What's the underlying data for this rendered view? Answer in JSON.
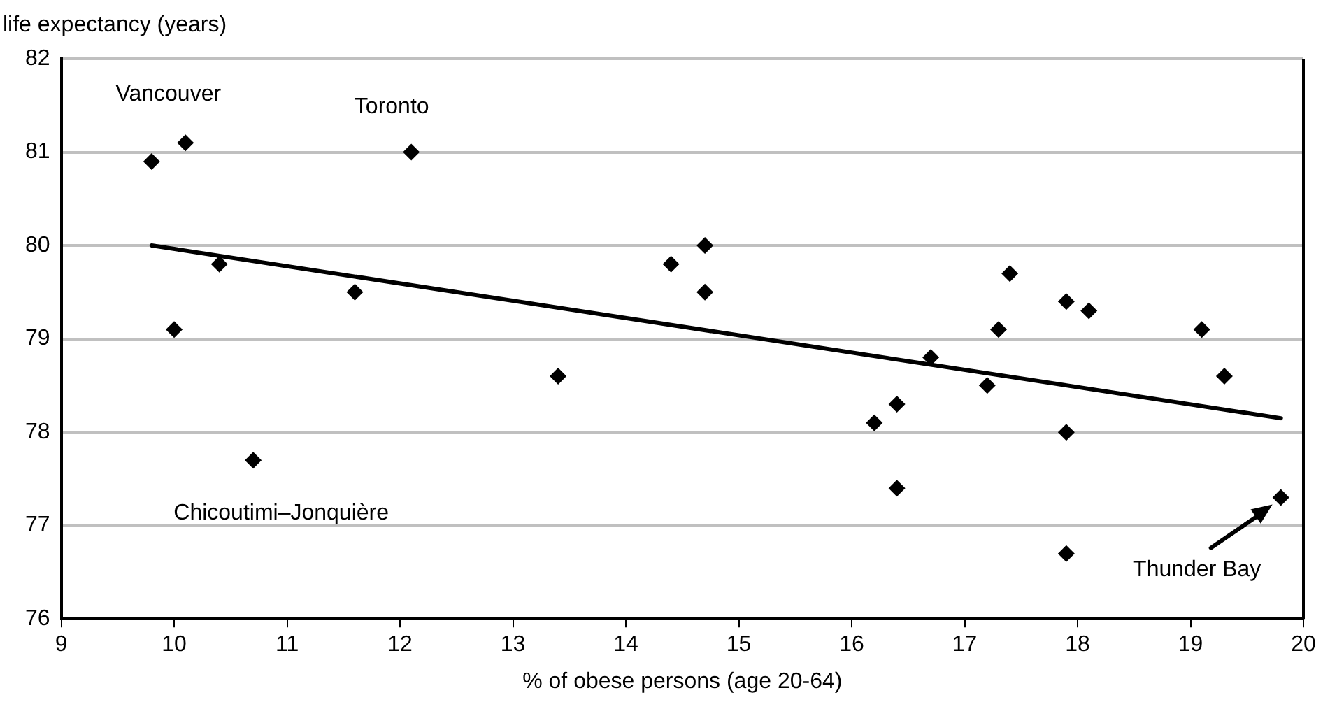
{
  "chart_data": {
    "type": "scatter",
    "xlabel": "% of obese persons (age 20-64)",
    "ylabel": "life expectancy (years)",
    "xlim": [
      9,
      20
    ],
    "xticks": [
      9,
      10,
      11,
      12,
      13,
      14,
      15,
      16,
      17,
      18,
      19,
      20
    ],
    "ylim": [
      76,
      82
    ],
    "yticks": [
      76,
      77,
      78,
      79,
      80,
      81,
      82
    ],
    "grid": "y",
    "series": [
      {
        "marker": "diamond",
        "color": "#000000",
        "x": [
          9.8,
          10.1,
          10.0,
          10.4,
          10.7,
          11.6,
          12.1,
          13.4,
          14.4,
          14.7,
          14.7,
          16.2,
          16.4,
          16.4,
          16.7,
          17.2,
          17.3,
          17.4,
          17.9,
          18.1,
          17.9,
          17.9,
          19.1,
          19.3,
          19.8
        ],
        "values": [
          80.9,
          81.1,
          79.1,
          79.8,
          77.7,
          79.5,
          81.0,
          78.6,
          79.8,
          80.0,
          79.5,
          78.1,
          78.3,
          77.4,
          78.8,
          78.5,
          79.1,
          79.7,
          79.4,
          79.3,
          78.0,
          76.7,
          79.1,
          78.6,
          77.3
        ]
      },
      {
        "type": "line",
        "color": "#000000",
        "x": [
          9.8,
          19.8
        ],
        "values": [
          80.0,
          78.15
        ]
      }
    ],
    "annotations": [
      {
        "text": "Vancouver",
        "x": 9.8,
        "y": 80.9
      },
      {
        "text": "Toronto",
        "x": 12.1,
        "y": 81.0
      },
      {
        "text": "Chicoutimi–Jonquière",
        "x": 10.7,
        "y": 77.7
      },
      {
        "text": "Thunder Bay",
        "x": 19.8,
        "y": 77.3
      }
    ]
  }
}
